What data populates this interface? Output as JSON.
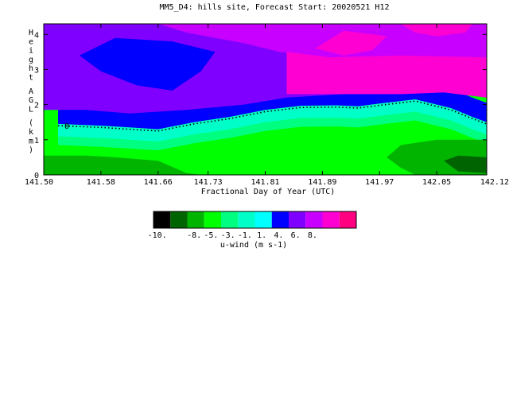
{
  "chart_data": {
    "type": "heatmap",
    "title": "MM5_D4: hills site,  Forecast Start: 20020521 H12",
    "xlabel": "Fractional Day of Year (UTC)",
    "ylabel": "Height AGL (km)",
    "xlim": [
      141.5,
      142.12
    ],
    "ylim": [
      0,
      4.3
    ],
    "x_ticks": [
      "141.50",
      "141.58",
      "141.66",
      "141.73",
      "141.81",
      "141.89",
      "141.97",
      "142.05",
      "142.12"
    ],
    "y_ticks": [
      "0",
      "1",
      "2",
      "3",
      "4"
    ],
    "zero_contour_label": "0",
    "zero_contour": [
      [
        141.52,
        1.4
      ],
      [
        141.58,
        1.35
      ],
      [
        141.62,
        1.3
      ],
      [
        141.66,
        1.25
      ],
      [
        141.71,
        1.45
      ],
      [
        141.76,
        1.6
      ],
      [
        141.81,
        1.8
      ],
      [
        141.86,
        1.92
      ],
      [
        141.91,
        1.93
      ],
      [
        141.94,
        1.9
      ],
      [
        141.97,
        1.98
      ],
      [
        142.02,
        2.1
      ],
      [
        142.07,
        1.85
      ],
      [
        142.1,
        1.6
      ],
      [
        142.12,
        1.45
      ]
    ],
    "regions": [
      {
        "level": -8,
        "points": [
          [
            141.5,
            0
          ],
          [
            141.5,
            0.3
          ],
          [
            141.52,
            0.4
          ],
          [
            141.55,
            0.3
          ],
          [
            141.56,
            0.2
          ],
          [
            141.56,
            0
          ]
        ]
      },
      {
        "level": -5,
        "points": [
          [
            141.5,
            0
          ],
          [
            141.5,
            0.55
          ],
          [
            141.56,
            0.55
          ],
          [
            141.6,
            0.5
          ],
          [
            141.66,
            0.4
          ],
          [
            141.7,
            0.05
          ],
          [
            141.72,
            0
          ]
        ]
      },
      {
        "level": -5,
        "points": [
          [
            142.12,
            0
          ],
          [
            142.12,
            1.0
          ],
          [
            142.05,
            1.0
          ],
          [
            142.0,
            0.85
          ],
          [
            141.98,
            0.5
          ],
          [
            142.0,
            0.2
          ],
          [
            142.02,
            0
          ]
        ]
      },
      {
        "level": -8,
        "points": [
          [
            142.12,
            0.05
          ],
          [
            142.12,
            0.5
          ],
          [
            142.08,
            0.55
          ],
          [
            142.06,
            0.4
          ],
          [
            142.08,
            0.1
          ]
        ]
      }
    ],
    "upper_regions": [
      {
        "level": 4,
        "points": [
          [
            141.5,
            4.3
          ],
          [
            141.5,
            1.85
          ],
          [
            141.56,
            1.85
          ],
          [
            141.62,
            1.75
          ],
          [
            141.7,
            1.85
          ],
          [
            141.78,
            2.0
          ],
          [
            141.84,
            2.2
          ],
          [
            141.92,
            2.3
          ],
          [
            142.0,
            2.3
          ],
          [
            142.06,
            2.35
          ],
          [
            142.12,
            2.2
          ],
          [
            142.12,
            4.3
          ]
        ]
      },
      {
        "level": 6,
        "points": [
          [
            141.66,
            4.3
          ],
          [
            141.7,
            4.05
          ],
          [
            141.78,
            3.75
          ],
          [
            141.83,
            3.5
          ],
          [
            141.9,
            3.35
          ],
          [
            142.0,
            3.4
          ],
          [
            142.12,
            3.35
          ],
          [
            142.12,
            4.3
          ]
        ]
      },
      {
        "level": 7,
        "points": [
          [
            141.84,
            2.3
          ],
          [
            141.84,
            3.5
          ],
          [
            141.9,
            3.35
          ],
          [
            142.0,
            3.4
          ],
          [
            142.12,
            3.35
          ],
          [
            142.12,
            2.2
          ],
          [
            142.06,
            2.35
          ],
          [
            142.0,
            2.3
          ],
          [
            141.92,
            2.3
          ]
        ]
      },
      {
        "level": 1,
        "points": [
          [
            141.55,
            3.4
          ],
          [
            141.6,
            3.9
          ],
          [
            141.68,
            3.8
          ],
          [
            141.74,
            3.5
          ],
          [
            141.72,
            2.95
          ],
          [
            141.68,
            2.4
          ],
          [
            141.63,
            2.55
          ],
          [
            141.58,
            2.95
          ]
        ]
      },
      {
        "level": 7,
        "points": [
          [
            141.88,
            3.6
          ],
          [
            141.92,
            4.1
          ],
          [
            141.98,
            3.95
          ],
          [
            141.96,
            3.55
          ],
          [
            141.92,
            3.4
          ]
        ]
      },
      {
        "level": 7,
        "points": [
          [
            142.0,
            4.3
          ],
          [
            142.02,
            4.05
          ],
          [
            142.05,
            3.95
          ],
          [
            142.09,
            4.05
          ],
          [
            142.1,
            4.3
          ]
        ]
      }
    ],
    "colorbar": {
      "label": "u-wind (m s-1)",
      "tick_labels": [
        "-10.",
        "-8.",
        "-5.",
        "-3.",
        "-1.",
        "1.",
        "4.",
        "6.",
        "8."
      ],
      "colors": [
        "#000000",
        "#006400",
        "#00b400",
        "#00ff00",
        "#00ff80",
        "#00ffc8",
        "#00ffff",
        "#0000ff",
        "#8000ff",
        "#c800ff",
        "#ff00d2",
        "#ff0080"
      ]
    },
    "level_colors": {
      "-8": "#006400",
      "-5": "#00b400",
      "-3": "#00ff00",
      "-1": "#00ff80",
      "0": "#00ffc8",
      "1": "#0000ff",
      "4": "#8000ff",
      "6": "#c800ff",
      "7": "#ff00d2"
    },
    "grid": false
  }
}
